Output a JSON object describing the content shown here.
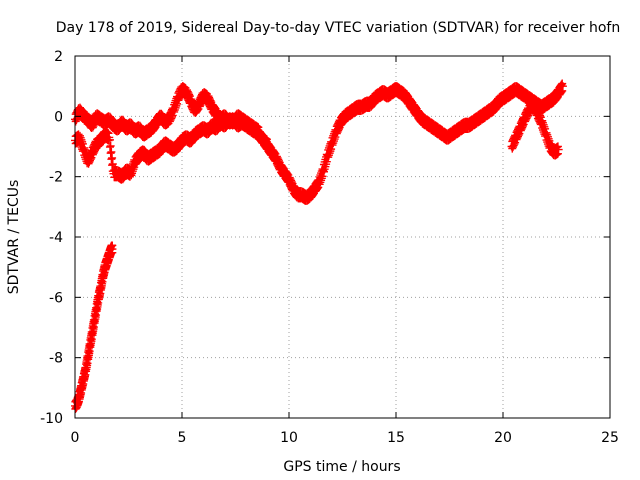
{
  "chart_data": {
    "type": "scatter",
    "title": "Day 178 of 2019, Sidereal Day-to-day VTEC variation (SDTVAR) for receiver hofn",
    "xlabel": "GPS time / hours",
    "ylabel": "SDTVAR / TECUs",
    "xlim": [
      0,
      25
    ],
    "ylim": [
      -10,
      2
    ],
    "xticks": [
      0,
      5,
      10,
      15,
      20,
      25
    ],
    "yticks": [
      -10,
      -8,
      -6,
      -4,
      -2,
      0,
      2
    ],
    "grid": true,
    "marker": "+",
    "colors": {
      "series": "#ff0000",
      "grid": "#a0a0a0",
      "axis": "#000000"
    },
    "series": [
      {
        "name": "trace-initial-drop",
        "x": [
          0.0,
          0.1,
          0.2,
          0.3,
          0.4,
          0.5,
          0.6,
          0.7,
          0.8,
          0.9,
          1.0,
          1.1,
          1.2,
          1.3,
          1.4,
          1.5,
          1.6,
          1.7,
          1.75
        ],
        "y": [
          -9.6,
          -9.5,
          -9.3,
          -9.0,
          -8.7,
          -8.4,
          -8.0,
          -7.6,
          -7.2,
          -6.8,
          -6.4,
          -6.0,
          -5.7,
          -5.3,
          -5.0,
          -4.8,
          -4.6,
          -4.4,
          -4.4
        ]
      },
      {
        "name": "trace-upper-band",
        "x": [
          0.0,
          0.2,
          0.4,
          0.6,
          0.8,
          1.0,
          1.2,
          1.4,
          1.6,
          1.8,
          2.0,
          2.2,
          2.4,
          2.6,
          2.8,
          3.0,
          3.2,
          3.4,
          3.6,
          3.8,
          4.0,
          4.2,
          4.4,
          4.6,
          4.8,
          5.0,
          5.2,
          5.4,
          5.6,
          5.8,
          6.0,
          6.2,
          6.4,
          6.6,
          6.8,
          7.0,
          7.2,
          7.4,
          7.6,
          7.8,
          8.0,
          8.2,
          8.4,
          8.6,
          8.8,
          9.0
        ],
        "y": [
          -0.1,
          0.2,
          0.0,
          -0.1,
          -0.3,
          0.0,
          -0.1,
          -0.2,
          -0.1,
          -0.3,
          -0.4,
          -0.2,
          -0.4,
          -0.3,
          -0.5,
          -0.4,
          -0.6,
          -0.5,
          -0.4,
          -0.2,
          0.0,
          -0.2,
          -0.1,
          0.2,
          0.6,
          0.9,
          0.8,
          0.5,
          0.2,
          0.4,
          0.7,
          0.6,
          0.3,
          0.1,
          -0.1,
          0.0,
          -0.2,
          -0.1,
          -0.3,
          -0.2,
          -0.3,
          -0.4,
          -0.5,
          -0.6,
          -0.8,
          -0.9
        ]
      },
      {
        "name": "trace-lower-band",
        "x": [
          0.0,
          0.2,
          0.4,
          0.6,
          0.8,
          1.0,
          1.2,
          1.4,
          1.6,
          1.8,
          2.0,
          2.2,
          2.4,
          2.6,
          2.8,
          3.0,
          3.2,
          3.4,
          3.6,
          3.8,
          4.0,
          4.2,
          4.4,
          4.6,
          4.8,
          5.0,
          5.2,
          5.4,
          5.6,
          5.8,
          6.0,
          6.2,
          6.4,
          6.6,
          6.8,
          7.0,
          7.2,
          7.4,
          7.6,
          7.8,
          8.0,
          8.2,
          8.4,
          8.6
        ],
        "y": [
          -0.8,
          -0.7,
          -1.1,
          -1.5,
          -1.2,
          -0.9,
          -0.8,
          -0.6,
          -0.7,
          -1.9,
          -1.9,
          -2.0,
          -1.8,
          -1.9,
          -1.5,
          -1.3,
          -1.2,
          -1.4,
          -1.3,
          -1.2,
          -1.1,
          -0.9,
          -1.0,
          -1.1,
          -1.0,
          -0.8,
          -0.7,
          -0.8,
          -0.6,
          -0.5,
          -0.4,
          -0.5,
          -0.3,
          -0.4,
          -0.2,
          -0.3,
          -0.1,
          -0.2,
          0.0,
          -0.1,
          -0.2,
          -0.3,
          -0.4,
          -0.5
        ]
      },
      {
        "name": "trace-main",
        "x": [
          8.6,
          8.8,
          9.0,
          9.2,
          9.4,
          9.6,
          9.8,
          10.0,
          10.2,
          10.4,
          10.6,
          10.8,
          11.0,
          11.2,
          11.4,
          11.6,
          11.8,
          12.0,
          12.2,
          12.4,
          12.6,
          12.8,
          13.0,
          13.2,
          13.4,
          13.6,
          13.8,
          14.0,
          14.2,
          14.4,
          14.6,
          14.8,
          15.0,
          15.2,
          15.4,
          15.6,
          15.8,
          16.0,
          16.2,
          16.4,
          16.6,
          16.8,
          17.0,
          17.2,
          17.4,
          17.6,
          17.8,
          18.0,
          18.2,
          18.4,
          18.6,
          18.8,
          19.0,
          19.2,
          19.4,
          19.6,
          19.8,
          20.0,
          20.2,
          20.4,
          20.6,
          20.8,
          21.0,
          21.2,
          21.4,
          21.6,
          21.8,
          22.0,
          22.2,
          22.4,
          22.6,
          22.8
        ],
        "y": [
          -0.6,
          -0.8,
          -1.0,
          -1.2,
          -1.4,
          -1.7,
          -1.9,
          -2.1,
          -2.4,
          -2.6,
          -2.6,
          -2.7,
          -2.6,
          -2.4,
          -2.2,
          -1.8,
          -1.3,
          -0.9,
          -0.5,
          -0.2,
          0.0,
          0.1,
          0.2,
          0.3,
          0.3,
          0.4,
          0.4,
          0.6,
          0.7,
          0.8,
          0.7,
          0.8,
          0.9,
          0.8,
          0.7,
          0.5,
          0.3,
          0.1,
          -0.1,
          -0.2,
          -0.3,
          -0.4,
          -0.5,
          -0.6,
          -0.7,
          -0.6,
          -0.5,
          -0.4,
          -0.3,
          -0.3,
          -0.2,
          -0.1,
          0.0,
          0.1,
          0.2,
          0.3,
          0.5,
          0.6,
          0.7,
          0.8,
          0.9,
          0.8,
          0.7,
          0.6,
          0.5,
          0.4,
          0.3,
          0.4,
          0.5,
          0.6,
          0.8,
          1.0
        ]
      },
      {
        "name": "trace-afternoon-dip",
        "x": [
          20.4,
          20.6,
          20.8,
          21.0,
          21.2,
          21.4,
          21.6,
          21.8,
          22.0,
          22.2,
          22.4,
          22.6
        ],
        "y": [
          -1.0,
          -0.7,
          -0.4,
          -0.1,
          0.2,
          0.4,
          0.1,
          -0.2,
          -0.6,
          -1.0,
          -1.2,
          -1.1
        ]
      }
    ]
  }
}
